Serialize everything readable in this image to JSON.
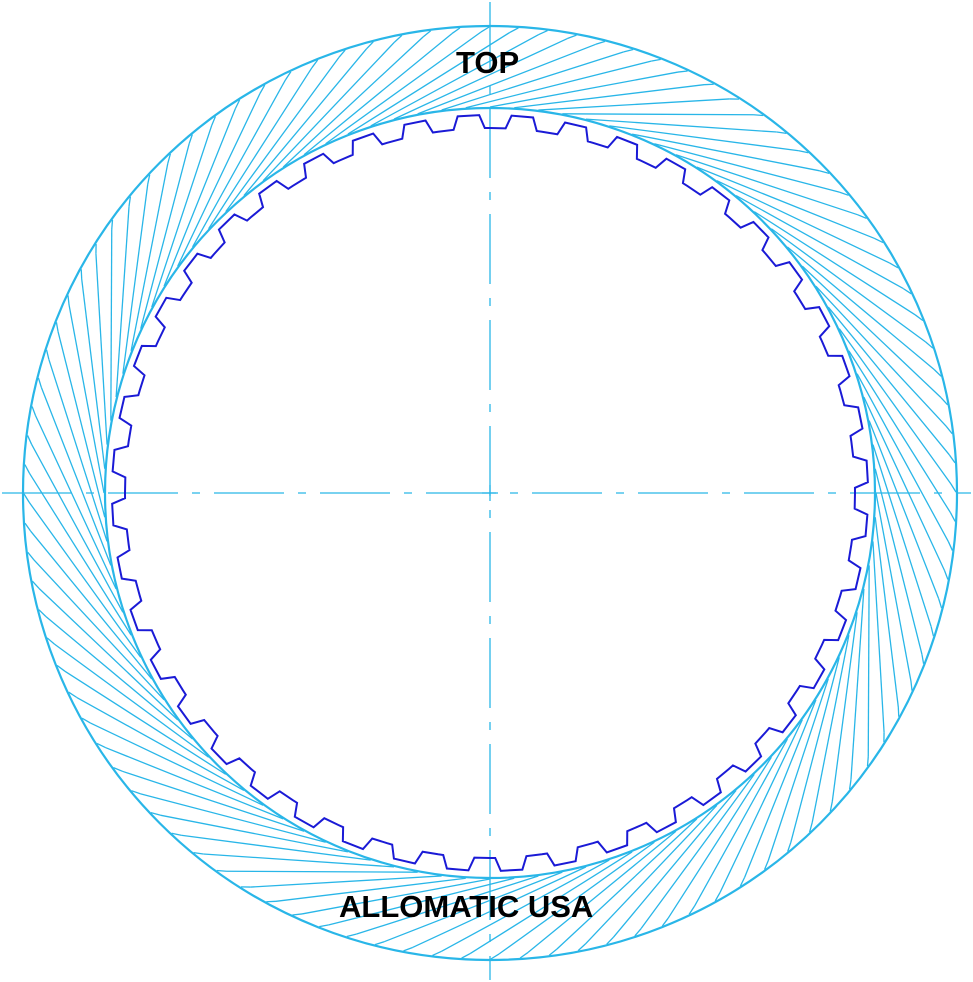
{
  "labels": {
    "top": "TOP",
    "brand": "ALLOMATIC USA"
  },
  "part": {
    "type": "friction clutch plate",
    "inner_spline_teeth": 44,
    "friction_grooves": 100
  },
  "colors": {
    "outline": "#29b6e8",
    "spline": "#1a1ad6",
    "centerline": "#29b6e8",
    "text": "#000000",
    "background": "#ffffff"
  }
}
